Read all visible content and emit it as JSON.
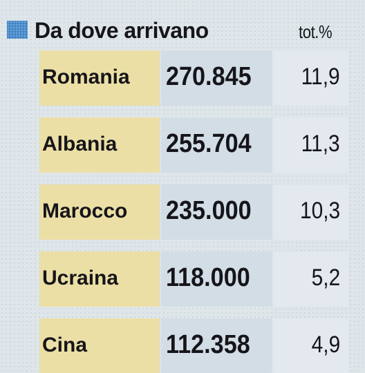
{
  "header": {
    "title": "Da dove arrivano",
    "column": "tot.%"
  },
  "table": {
    "rows": [
      [
        "Romania",
        "270.845",
        "11,9"
      ],
      [
        "Albania",
        "255.704",
        "11,3"
      ],
      [
        "Marocco",
        "235.000",
        "10,3"
      ],
      [
        "Ucraina",
        "118.000",
        "5,2"
      ],
      [
        "Cina",
        "112.358",
        "4,9"
      ]
    ]
  }
}
